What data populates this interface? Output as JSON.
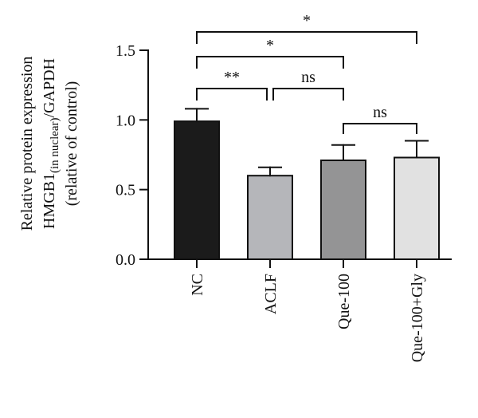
{
  "chart_data": {
    "type": "bar",
    "title": "",
    "xlabel": "",
    "ylabel": {
      "line1": "Relative protein expression",
      "line2_prefix": "HMGB1",
      "line2_sub": "(in nuclear)",
      "line2_suffix": "/GAPDH",
      "line3": "(relative of control)"
    },
    "ylim": [
      0,
      1.5
    ],
    "yticks": [
      "0.0",
      "0.5",
      "1.0",
      "1.5"
    ],
    "categories": [
      "NC",
      "ACLF",
      "Que-100",
      "Que-100+Gly"
    ],
    "values": [
      0.99,
      0.6,
      0.71,
      0.73
    ],
    "errors": [
      0.09,
      0.06,
      0.11,
      0.12
    ],
    "bar_colors": [
      "#1b1b1b",
      "#b5b6ba",
      "#949495",
      "#e1e1e1"
    ],
    "grid": false,
    "legend": "none",
    "comparisons": [
      {
        "from": 0,
        "to": 3,
        "label": "*"
      },
      {
        "from": 0,
        "to": 2,
        "label": "*"
      },
      {
        "from": 0,
        "to": 1,
        "label": "**"
      },
      {
        "from": 1,
        "to": 2,
        "label": "ns"
      },
      {
        "from": 2,
        "to": 3,
        "label": "ns"
      }
    ]
  }
}
